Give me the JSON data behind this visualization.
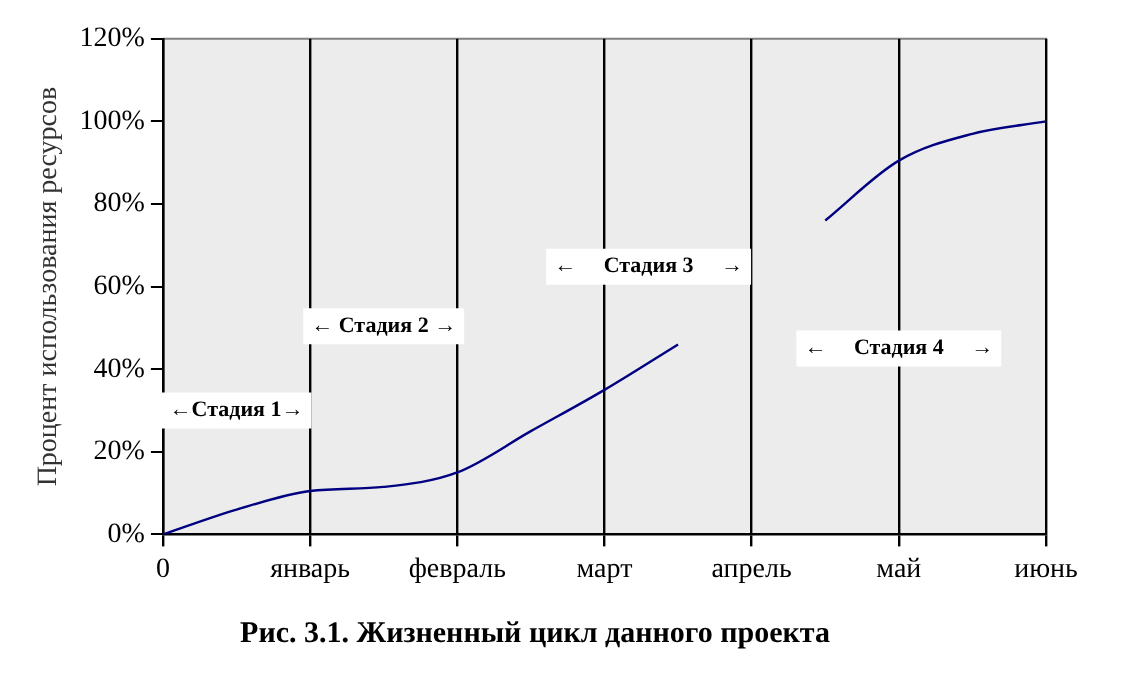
{
  "chart_data": {
    "type": "line",
    "title": "Рис. 3.1. Жизненный цикл данного проекта",
    "ylabel": "Процент использования ресурсов",
    "categories": [
      "0",
      null,
      "январь",
      null,
      "февраль",
      null,
      "март",
      null,
      "апрель",
      null,
      "май",
      null,
      "июнь"
    ],
    "series": [
      {
        "color": "#000080",
        "values": [
          0,
          6,
          10.5,
          11.5,
          15,
          25,
          35,
          46,
          null,
          76,
          90.5,
          97,
          100
        ]
      }
    ],
    "ylim": [
      0,
      120
    ],
    "yticks": [
      {
        "value": 0,
        "label": "0%"
      },
      {
        "value": 20,
        "label": "20%"
      },
      {
        "value": 40,
        "label": "40%"
      },
      {
        "value": 60,
        "label": "60%"
      },
      {
        "value": 80,
        "label": "80%"
      },
      {
        "value": 100,
        "label": "100%"
      },
      {
        "value": 120,
        "label": "120%"
      }
    ],
    "grid": "x",
    "legend": false,
    "annotations": [
      "←Стадия 1→",
      "← Стадия 2 →",
      "←     Стадия 3     →",
      "←     Стадия 4     →"
    ]
  }
}
